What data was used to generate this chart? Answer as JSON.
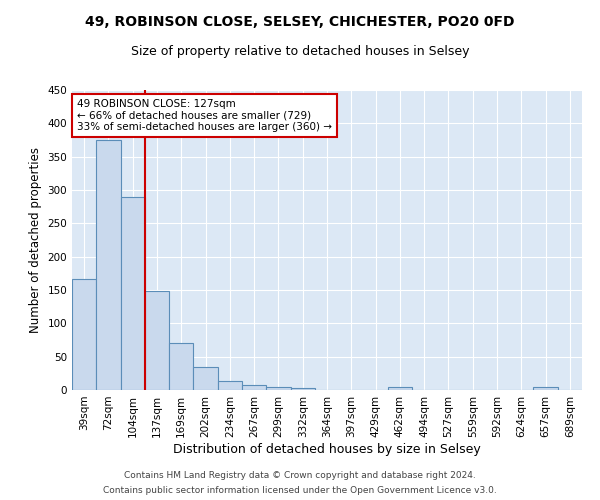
{
  "title": "49, ROBINSON CLOSE, SELSEY, CHICHESTER, PO20 0FD",
  "subtitle": "Size of property relative to detached houses in Selsey",
  "xlabel": "Distribution of detached houses by size in Selsey",
  "ylabel": "Number of detached properties",
  "categories": [
    "39sqm",
    "72sqm",
    "104sqm",
    "137sqm",
    "169sqm",
    "202sqm",
    "234sqm",
    "267sqm",
    "299sqm",
    "332sqm",
    "364sqm",
    "397sqm",
    "429sqm",
    "462sqm",
    "494sqm",
    "527sqm",
    "559sqm",
    "592sqm",
    "624sqm",
    "657sqm",
    "689sqm"
  ],
  "values": [
    167,
    375,
    290,
    148,
    70,
    34,
    14,
    7,
    5,
    3,
    0,
    0,
    0,
    4,
    0,
    0,
    0,
    0,
    0,
    4,
    0
  ],
  "bar_color": "#c9d9ed",
  "bar_edge_color": "#5b8db8",
  "bar_linewidth": 0.8,
  "vline_x": 2.5,
  "vline_color": "#cc0000",
  "vline_linewidth": 1.5,
  "annotation_text": "49 ROBINSON CLOSE: 127sqm\n← 66% of detached houses are smaller (729)\n33% of semi-detached houses are larger (360) →",
  "annotation_box_color": "#ffffff",
  "annotation_box_edge": "#cc0000",
  "ylim": [
    0,
    450
  ],
  "yticks": [
    0,
    50,
    100,
    150,
    200,
    250,
    300,
    350,
    400,
    450
  ],
  "background_color": "#dce8f5",
  "footer_line1": "Contains HM Land Registry data © Crown copyright and database right 2024.",
  "footer_line2": "Contains public sector information licensed under the Open Government Licence v3.0.",
  "title_fontsize": 10,
  "subtitle_fontsize": 9,
  "xlabel_fontsize": 9,
  "ylabel_fontsize": 8.5,
  "tick_fontsize": 7.5,
  "footer_fontsize": 6.5,
  "annot_fontsize": 7.5
}
